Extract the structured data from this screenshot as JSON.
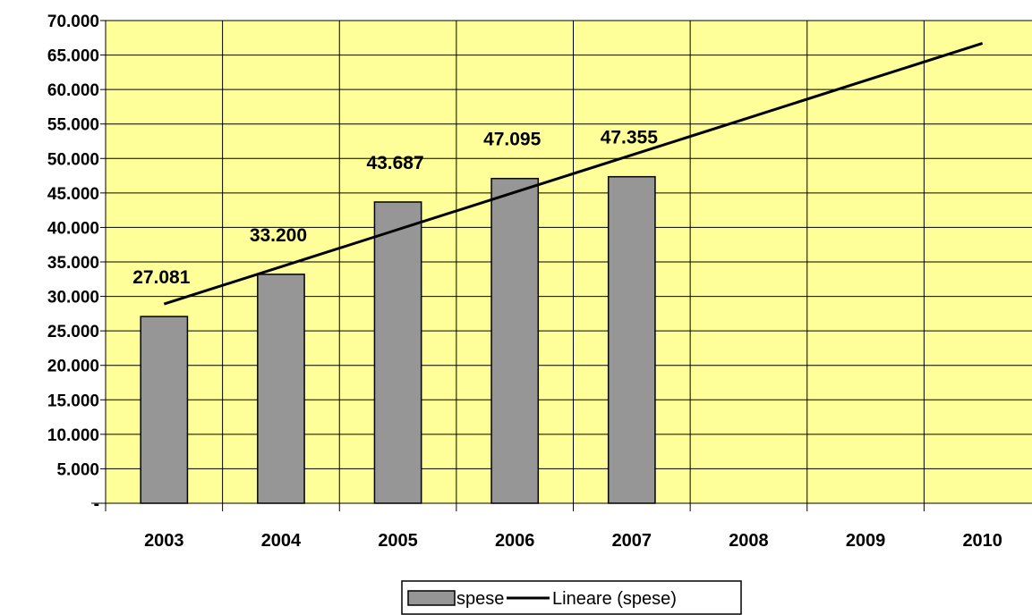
{
  "chart_data": {
    "type": "bar",
    "categories": [
      "2003",
      "2004",
      "2005",
      "2006",
      "2007",
      "2008",
      "2009",
      "2010"
    ],
    "series": [
      {
        "name": "spese",
        "type": "bar",
        "values": [
          27081,
          33200,
          43687,
          47095,
          47355,
          null,
          null,
          null
        ],
        "data_labels": [
          "27.081",
          "33.200",
          "43.687",
          "47.095",
          "47.355"
        ],
        "color": "#969696"
      },
      {
        "name": "Lineare (spese)",
        "type": "line",
        "trendline": true,
        "values": [
          28900,
          34300,
          39700,
          45100,
          50500,
          55900,
          61300,
          66700
        ],
        "color": "#000000"
      }
    ],
    "ylim": [
      0,
      70000
    ],
    "y_ticks": [
      0,
      5000,
      10000,
      15000,
      20000,
      25000,
      30000,
      35000,
      40000,
      45000,
      50000,
      55000,
      60000,
      65000,
      70000
    ],
    "y_tick_labels": [
      "-",
      "5.000",
      "10.000",
      "15.000",
      "20.000",
      "25.000",
      "30.000",
      "35.000",
      "40.000",
      "45.000",
      "50.000",
      "55.000",
      "60.000",
      "65.000",
      "70.000"
    ],
    "grid": true,
    "legend_position": "bottom",
    "plot_background": "#ffff99",
    "title": "",
    "xlabel": "",
    "ylabel": ""
  }
}
